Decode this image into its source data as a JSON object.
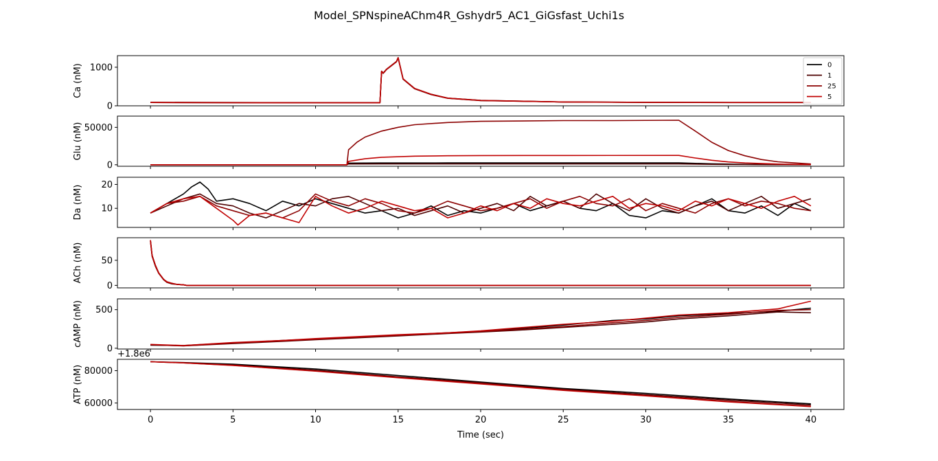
{
  "figure": {
    "title": "Model_SPNspineAChm4R_Gshydr5_AC1_GiGsfast_Uchi1s",
    "xlabel": "Time (sec)",
    "xticks": [
      0,
      5,
      10,
      15,
      20,
      25,
      30,
      35,
      40
    ],
    "xlim": [
      -2,
      42
    ]
  },
  "legend": {
    "placement": "top-right",
    "entries": [
      {
        "label": "0",
        "color": "#000000"
      },
      {
        "label": "1",
        "color": "#4d0000"
      },
      {
        "label": "25",
        "color": "#8b0000"
      },
      {
        "label": "5",
        "color": "#c00000"
      }
    ]
  },
  "chart_data": [
    {
      "type": "line",
      "ylabel": "Ca (nM)",
      "ylim": [
        0,
        1300
      ],
      "yticks": [
        0,
        1000
      ],
      "series": [
        {
          "name": "0",
          "x": [
            0,
            5,
            10,
            13.9,
            14.0,
            14.1,
            14.3,
            14.6,
            14.9,
            15.0,
            15.3,
            16,
            17,
            18,
            20,
            25,
            30,
            35,
            40
          ],
          "y": [
            85,
            80,
            80,
            80,
            900,
            850,
            950,
            1050,
            1150,
            1250,
            700,
            450,
            300,
            200,
            140,
            100,
            90,
            85,
            85
          ]
        },
        {
          "name": "1",
          "x": [
            0,
            5,
            10,
            13.9,
            14.0,
            14.1,
            14.3,
            14.6,
            14.9,
            15.0,
            15.3,
            16,
            17,
            18,
            20,
            25,
            30,
            35,
            40
          ],
          "y": [
            90,
            85,
            82,
            82,
            880,
            840,
            940,
            1040,
            1140,
            1240,
            690,
            440,
            290,
            195,
            135,
            98,
            88,
            84,
            84
          ]
        },
        {
          "name": "25",
          "x": [
            0,
            5,
            10,
            13.9,
            14.0,
            14.1,
            14.3,
            14.6,
            14.9,
            15.0,
            15.3,
            16,
            17,
            18,
            20,
            25,
            30,
            35,
            40
          ],
          "y": [
            88,
            82,
            80,
            80,
            890,
            845,
            945,
            1045,
            1145,
            1245,
            695,
            445,
            295,
            198,
            138,
            99,
            89,
            85,
            85
          ]
        },
        {
          "name": "5",
          "x": [
            0,
            5,
            10,
            13.9,
            14.0,
            14.1,
            14.3,
            14.6,
            14.9,
            15.0,
            15.3,
            16,
            17,
            18,
            20,
            25,
            30,
            35,
            40
          ],
          "y": [
            86,
            81,
            79,
            79,
            895,
            848,
            948,
            1048,
            1148,
            1248,
            698,
            448,
            298,
            199,
            139,
            100,
            90,
            86,
            86
          ]
        }
      ]
    },
    {
      "type": "line",
      "ylabel": "Glu (nM)",
      "ylim": [
        -2000,
        65000
      ],
      "yticks": [
        0,
        50000
      ],
      "series": [
        {
          "name": "0",
          "x": [
            0,
            11.9,
            12.0,
            14,
            18,
            25,
            32,
            34,
            36,
            38,
            40
          ],
          "y": [
            0,
            0,
            2200,
            2400,
            2500,
            2500,
            2500,
            1300,
            600,
            300,
            100
          ]
        },
        {
          "name": "1",
          "x": [
            0,
            11.9,
            12.0,
            14,
            18,
            25,
            32,
            34,
            36,
            38,
            40
          ],
          "y": [
            0,
            0,
            1000,
            1100,
            1150,
            1150,
            1150,
            600,
            280,
            130,
            50
          ]
        },
        {
          "name": "25",
          "x": [
            0,
            11.9,
            12.0,
            12.5,
            13,
            14,
            15,
            16,
            18,
            20,
            25,
            28,
            32,
            33,
            34,
            35,
            36,
            37,
            38,
            40
          ],
          "y": [
            0,
            0,
            20000,
            30000,
            37000,
            45000,
            50000,
            53500,
            56500,
            58000,
            59000,
            59000,
            59500,
            45000,
            30000,
            19000,
            12000,
            7000,
            4000,
            1000
          ]
        },
        {
          "name": "5",
          "x": [
            0,
            11.9,
            12.0,
            13,
            14,
            16,
            18,
            20,
            25,
            32,
            33,
            34,
            35,
            36,
            38,
            40
          ],
          "y": [
            0,
            0,
            4500,
            8000,
            10000,
            11500,
            12000,
            12300,
            12400,
            12500,
            9000,
            6000,
            3800,
            2400,
            900,
            200
          ]
        }
      ]
    },
    {
      "type": "line",
      "ylabel": "Da (nM)",
      "ylim": [
        2,
        23
      ],
      "yticks": [
        10,
        20
      ],
      "series": [
        {
          "name": "0",
          "x": [
            0,
            1,
            2,
            2.5,
            3,
            3.5,
            4,
            5,
            6,
            7,
            8,
            9,
            10,
            11,
            12,
            13,
            14,
            15,
            16,
            17,
            18,
            19,
            20,
            21,
            22,
            23,
            24,
            25,
            26,
            27,
            28,
            29,
            30,
            31,
            32,
            33,
            34,
            35,
            36,
            37,
            38,
            39,
            40
          ],
          "y": [
            8,
            12,
            16,
            19,
            21,
            18,
            13,
            14,
            12,
            9,
            13,
            11,
            14,
            12,
            10,
            8,
            9,
            6,
            8,
            11,
            7,
            9,
            8,
            10,
            12,
            9,
            11,
            13,
            10,
            9,
            12,
            7,
            6,
            9,
            8,
            11,
            14,
            9,
            8,
            11,
            7,
            12,
            9
          ]
        },
        {
          "name": "1",
          "x": [
            0,
            1,
            2,
            3,
            4,
            5,
            6,
            7,
            8,
            9,
            10,
            11,
            12,
            13,
            14,
            15,
            16,
            17,
            18,
            19,
            20,
            21,
            22,
            23,
            24,
            25,
            26,
            27,
            28,
            29,
            30,
            31,
            32,
            33,
            34,
            35,
            36,
            37,
            38,
            39,
            40
          ],
          "y": [
            8,
            11,
            14,
            16,
            12,
            11,
            8,
            6,
            9,
            12,
            11,
            14,
            15,
            12,
            9,
            10,
            7,
            9,
            11,
            8,
            10,
            12,
            9,
            15,
            11,
            13,
            10,
            16,
            12,
            9,
            14,
            10,
            8,
            11,
            13,
            9,
            12,
            15,
            10,
            12,
            14
          ]
        },
        {
          "name": "25",
          "x": [
            0,
            1,
            2,
            3,
            4,
            5,
            6,
            7,
            8,
            9,
            10,
            11,
            12,
            13,
            14,
            15,
            16,
            17,
            18,
            19,
            20,
            21,
            22,
            23,
            24,
            25,
            26,
            27,
            28,
            29,
            30,
            31,
            32,
            33,
            34,
            35,
            36,
            37,
            38,
            39,
            40
          ],
          "y": [
            8,
            12,
            13,
            15,
            11,
            9,
            7,
            8,
            6,
            9,
            16,
            13,
            11,
            14,
            12,
            9,
            8,
            10,
            13,
            11,
            9,
            10,
            12,
            14,
            10,
            13,
            15,
            12,
            11,
            14,
            9,
            12,
            10,
            8,
            12,
            14,
            11,
            13,
            12,
            10,
            9
          ]
        },
        {
          "name": "5",
          "x": [
            0,
            1,
            2,
            3,
            4,
            5,
            5.3,
            6,
            7,
            8,
            9,
            10,
            11,
            12,
            13,
            14,
            15,
            16,
            17,
            18,
            19,
            20,
            21,
            22,
            23,
            24,
            25,
            26,
            27,
            28,
            29,
            30,
            31,
            32,
            33,
            34,
            35,
            36,
            37,
            38,
            39,
            40
          ],
          "y": [
            8,
            12,
            14,
            15,
            10,
            5,
            3,
            7,
            8,
            6,
            4,
            15,
            11,
            8,
            10,
            13,
            11,
            9,
            10,
            6,
            8,
            11,
            9,
            12,
            10,
            14,
            12,
            11,
            13,
            15,
            10,
            12,
            11,
            9,
            13,
            11,
            14,
            12,
            10,
            13,
            15,
            11
          ]
        }
      ]
    },
    {
      "type": "line",
      "ylabel": "ACh (nM)",
      "ylim": [
        -5,
        95
      ],
      "yticks": [
        0,
        50
      ],
      "series": [
        {
          "name": "0",
          "x": [
            0,
            0.1,
            0.3,
            0.5,
            0.8,
            1.0,
            1.3,
            1.6,
            2.0,
            2.2,
            5,
            40
          ],
          "y": [
            90,
            60,
            40,
            25,
            12,
            7,
            4,
            2,
            1,
            0,
            0,
            0
          ]
        },
        {
          "name": "1",
          "x": [
            0,
            0.1,
            0.3,
            0.5,
            0.8,
            1.0,
            1.3,
            1.6,
            2.0,
            2.2,
            5,
            40
          ],
          "y": [
            88,
            58,
            38,
            24,
            11,
            6,
            3,
            2,
            1,
            0,
            0,
            0
          ]
        },
        {
          "name": "25",
          "x": [
            0,
            0.1,
            0.3,
            0.5,
            0.8,
            1.0,
            1.3,
            1.6,
            2.0,
            2.2,
            5,
            40
          ],
          "y": [
            89,
            59,
            39,
            24,
            12,
            6,
            4,
            2,
            1,
            0,
            0,
            0
          ]
        },
        {
          "name": "5",
          "x": [
            0,
            0.1,
            0.3,
            0.5,
            0.8,
            1.0,
            1.3,
            1.6,
            2.0,
            2.2,
            5,
            40
          ],
          "y": [
            90,
            60,
            40,
            25,
            12,
            7,
            4,
            2,
            1,
            0,
            0,
            0
          ]
        }
      ]
    },
    {
      "type": "line",
      "ylabel": "cAMP (nM)",
      "ylim": [
        -10,
        640
      ],
      "yticks": [
        0,
        500
      ],
      "series": [
        {
          "name": "0",
          "x": [
            0,
            2,
            5,
            8,
            10,
            12,
            15,
            18,
            20,
            22,
            25,
            28,
            30,
            32,
            35,
            38,
            40
          ],
          "y": [
            40,
            35,
            70,
            100,
            120,
            140,
            170,
            200,
            220,
            250,
            300,
            360,
            380,
            420,
            450,
            480,
            520
          ]
        },
        {
          "name": "1",
          "x": [
            0,
            2,
            5,
            8,
            10,
            12,
            15,
            18,
            20,
            22,
            25,
            28,
            30,
            32,
            35,
            38,
            40
          ],
          "y": [
            45,
            30,
            60,
            90,
            110,
            130,
            160,
            190,
            210,
            230,
            270,
            310,
            340,
            380,
            420,
            470,
            460
          ]
        },
        {
          "name": "25",
          "x": [
            0,
            2,
            5,
            8,
            10,
            12,
            15,
            18,
            20,
            22,
            25,
            28,
            30,
            32,
            35,
            38,
            40
          ],
          "y": [
            45,
            32,
            65,
            95,
            115,
            135,
            165,
            195,
            215,
            240,
            280,
            330,
            360,
            400,
            440,
            490,
            500
          ]
        },
        {
          "name": "5",
          "x": [
            0,
            2,
            5,
            8,
            10,
            12,
            15,
            18,
            20,
            22,
            25,
            28,
            30,
            32,
            35,
            38,
            40
          ],
          "y": [
            50,
            35,
            75,
            100,
            125,
            145,
            175,
            200,
            225,
            260,
            310,
            350,
            390,
            430,
            460,
            510,
            610
          ]
        }
      ]
    },
    {
      "type": "line",
      "ylabel": "ATP (nM)",
      "offset_label": "+1.8e6",
      "ylim": [
        56000,
        87000
      ],
      "yticks": [
        60000,
        80000
      ],
      "series": [
        {
          "name": "0",
          "x": [
            0,
            2,
            5,
            10,
            15,
            20,
            25,
            30,
            35,
            40
          ],
          "y": [
            85500,
            85000,
            84000,
            81000,
            77000,
            73000,
            69000,
            66000,
            62500,
            59500
          ]
        },
        {
          "name": "1",
          "x": [
            0,
            2,
            5,
            10,
            15,
            20,
            25,
            30,
            35,
            40
          ],
          "y": [
            85500,
            84900,
            83600,
            80300,
            76200,
            72500,
            68500,
            65200,
            61800,
            58800
          ]
        },
        {
          "name": "25",
          "x": [
            0,
            2,
            5,
            10,
            15,
            20,
            25,
            30,
            35,
            40
          ],
          "y": [
            85500,
            84800,
            83300,
            79800,
            75800,
            72000,
            68000,
            64600,
            61000,
            58000
          ]
        },
        {
          "name": "5",
          "x": [
            0,
            2,
            5,
            10,
            15,
            20,
            25,
            30,
            35,
            40
          ],
          "y": [
            85500,
            84800,
            83200,
            79700,
            75600,
            71800,
            67800,
            64400,
            60700,
            57800
          ]
        }
      ]
    }
  ]
}
